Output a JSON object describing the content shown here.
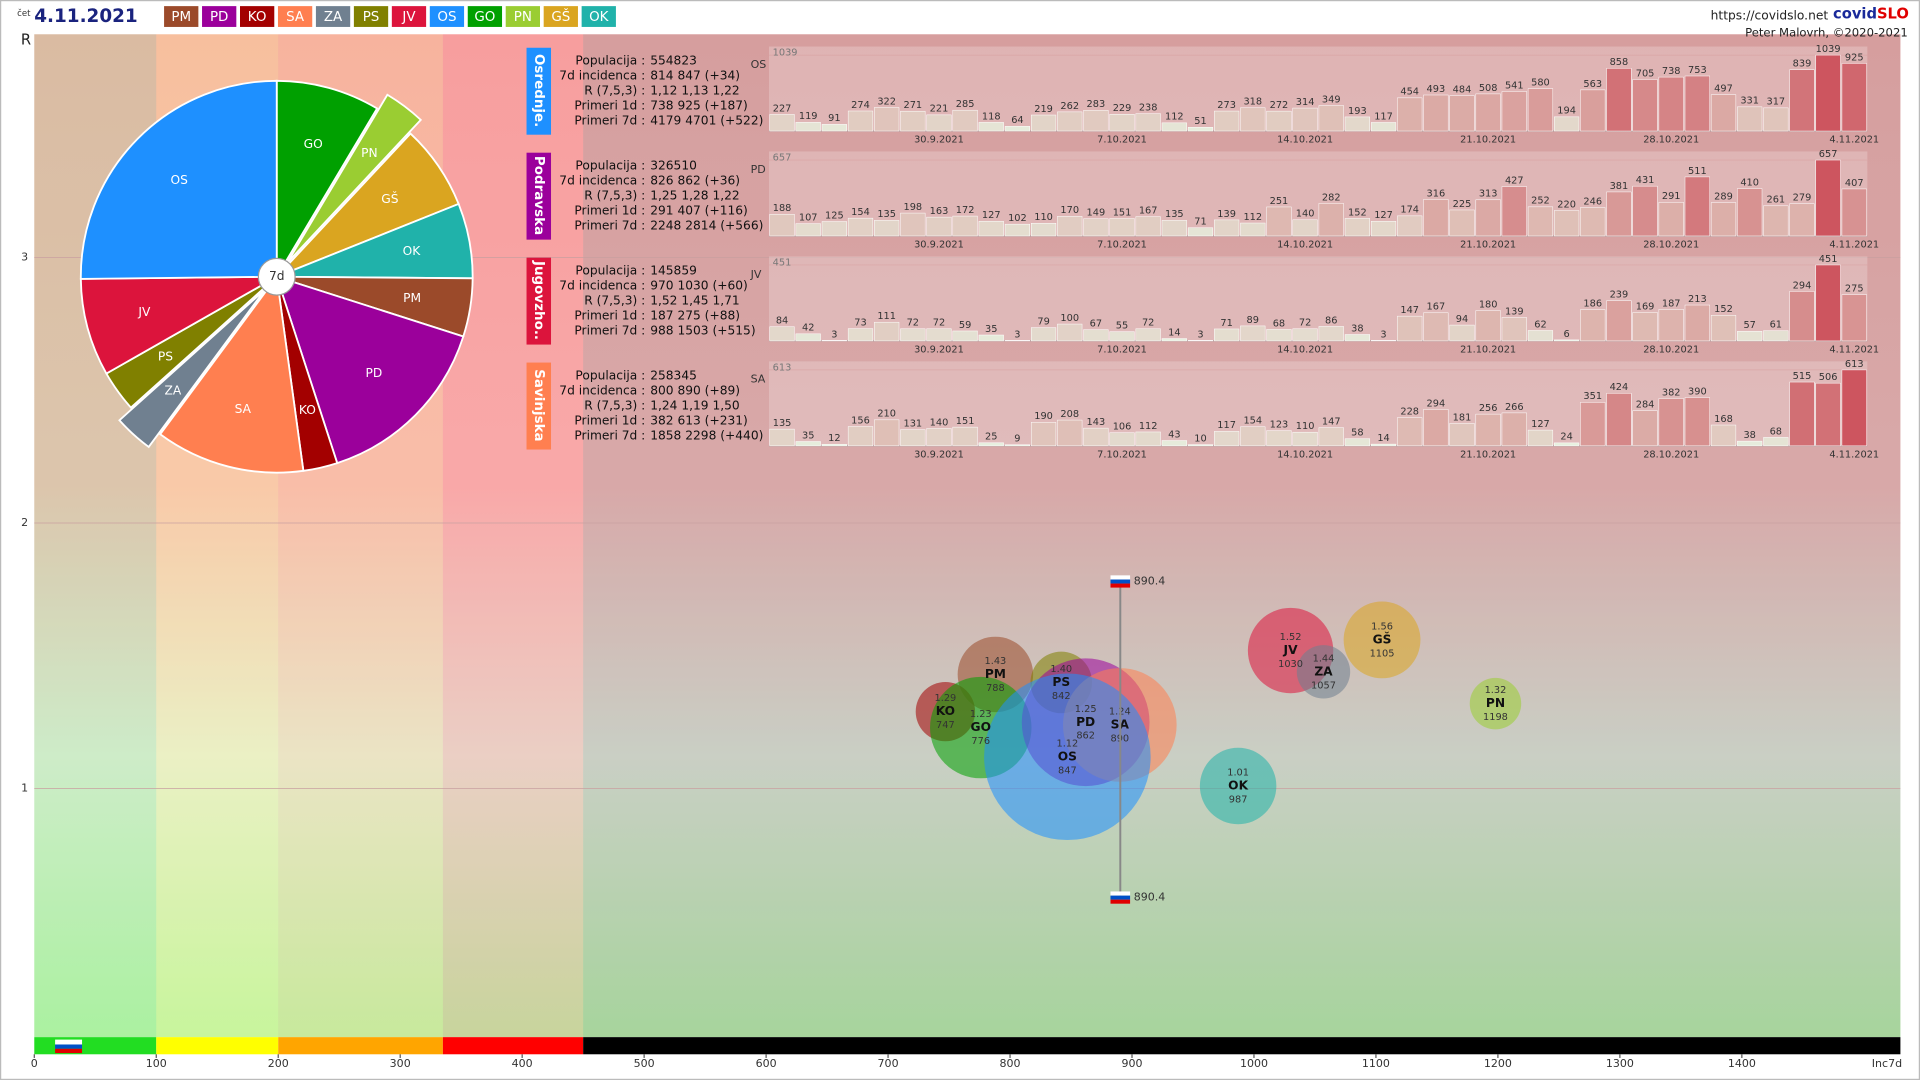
{
  "header": {
    "weekday": "čet",
    "date": "4.11.2021",
    "regions": [
      {
        "name": "PM",
        "color": "#9b4a2a"
      },
      {
        "name": "PD",
        "color": "#9b009b"
      },
      {
        "name": "KO",
        "color": "#a30000"
      },
      {
        "name": "SA",
        "color": "#ff7f50"
      },
      {
        "name": "ZA",
        "color": "#708090"
      },
      {
        "name": "PS",
        "color": "#808000"
      },
      {
        "name": "JV",
        "color": "#dc143c"
      },
      {
        "name": "OS",
        "color": "#1e90ff"
      },
      {
        "name": "GO",
        "color": "#00a000"
      },
      {
        "name": "PN",
        "color": "#9acd32"
      },
      {
        "name": "GŠ",
        "color": "#daa520"
      },
      {
        "name": "OK",
        "color": "#20b2aa"
      }
    ],
    "url": "https://covidslo.net",
    "brand": [
      "covid",
      "SLO"
    ],
    "author": "Peter Malovrh, ©2020-2021"
  },
  "panels": [
    {
      "title": "Osrednje.",
      "region": "OS",
      "rows": [
        {
          "label": "Populacija :",
          "value": "554823"
        },
        {
          "label": "7d incidenca :",
          "value": "814 847 (+34)"
        },
        {
          "label": "R (7,5,3) :",
          "value": "1,12 1,13 1,22"
        },
        {
          "label": "Primeri 1d :",
          "value": "738 925 (+187)"
        },
        {
          "label": "Primeri 7d :",
          "value": "4179 4701 (+522)"
        }
      ]
    },
    {
      "title": "Podravska",
      "region": "PD",
      "rows": [
        {
          "label": "Populacija :",
          "value": "326510"
        },
        {
          "label": "7d incidenca :",
          "value": "826 862 (+36)"
        },
        {
          "label": "R (7,5,3) :",
          "value": "1,25 1,28 1,22"
        },
        {
          "label": "Primeri 1d :",
          "value": "291 407 (+116)"
        },
        {
          "label": "Primeri 7d :",
          "value": "2248 2814 (+566)"
        }
      ]
    },
    {
      "title": "Jugovzho..",
      "region": "JV",
      "rows": [
        {
          "label": "Populacija :",
          "value": "145859"
        },
        {
          "label": "7d incidenca :",
          "value": "970 1030 (+60)"
        },
        {
          "label": "R (7,5,3) :",
          "value": "1,52 1,45 1,71"
        },
        {
          "label": "Primeri 1d :",
          "value": "187 275 (+88)"
        },
        {
          "label": "Primeri 7d :",
          "value": "988 1503 (+515)"
        }
      ]
    },
    {
      "title": "Savinjska",
      "region": "SA",
      "rows": [
        {
          "label": "Populacija :",
          "value": "258345"
        },
        {
          "label": "7d incidenca :",
          "value": "800 890 (+89)"
        },
        {
          "label": "R (7,5,3) :",
          "value": "1,24 1,19 1,50"
        },
        {
          "label": "Primeri 1d :",
          "value": "382 613 (+231)"
        },
        {
          "label": "Primeri 7d :",
          "value": "1858 2298 (+440)"
        }
      ]
    }
  ],
  "chart_data": [
    {
      "type": "bubble",
      "y_label": "R",
      "x_label": "Inc7d",
      "categories": [
        "KO",
        "PM",
        "GO",
        "PS",
        "PD",
        "SA",
        "OS",
        "OK",
        "JV",
        "ZA",
        "GŠ",
        "PN"
      ],
      "x": [
        747,
        788,
        776,
        842,
        862,
        890,
        847,
        987,
        1030,
        1057,
        1105,
        1198
      ],
      "values": [
        1.29,
        1.43,
        1.23,
        1.4,
        1.25,
        1.24,
        1.12,
        1.01,
        1.52,
        1.44,
        1.56,
        1.32
      ],
      "value_labels": [
        "1.29",
        "1.43",
        "1.23",
        "1.40",
        "1.25",
        "1.24",
        "1.12",
        "1.01",
        "1.52",
        "1.44",
        "1.56",
        "1.32"
      ],
      "sizes": [
        70500,
        114000,
        206000,
        75800,
        326510,
        258345,
        554823,
        117000,
        145859,
        57000,
        118000,
        53000
      ],
      "xlim": [
        0,
        1530
      ],
      "ylim": [
        0,
        3.84
      ],
      "xticks": [
        0,
        100,
        200,
        300,
        400,
        500,
        600,
        700,
        800,
        900,
        1000,
        1100,
        1200,
        1300,
        1400
      ],
      "yticks": [
        1,
        2,
        3
      ],
      "grid": true,
      "zones": [
        {
          "from": 0,
          "color": "#22dd22"
        },
        {
          "from": 100,
          "color": "#ffff00"
        },
        {
          "from": 200,
          "color": "#ffa500"
        },
        {
          "from": 335,
          "color": "#ff0000"
        },
        {
          "from": 450,
          "color": "#000000"
        }
      ],
      "marker": {
        "x": 890.4,
        "r": [
          0.59,
          1.78
        ]
      }
    },
    {
      "type": "pie",
      "center_label": "7d",
      "categories": [
        "GO",
        "PN",
        "GŠ",
        "OK",
        "PM",
        "PD",
        "KO",
        "SA",
        "ZA",
        "PS",
        "JV",
        "OS"
      ],
      "values": [
        1598,
        635,
        1304,
        1155,
        898,
        2814,
        527,
        2298,
        602,
        638,
        1503,
        4701
      ],
      "exploded": [
        false,
        true,
        false,
        false,
        false,
        false,
        false,
        false,
        true,
        false,
        false,
        false
      ]
    },
    {
      "type": "bar",
      "label": "OS",
      "ylim": [
        0,
        1039
      ],
      "yticks": [
        1039
      ],
      "categories": [
        null,
        null,
        null,
        null,
        null,
        null,
        "30.9.2021",
        null,
        null,
        null,
        null,
        null,
        null,
        "7.10.2021",
        null,
        null,
        null,
        null,
        null,
        null,
        "14.10.2021",
        null,
        null,
        null,
        null,
        null,
        null,
        "21.10.2021",
        null,
        null,
        null,
        null,
        null,
        null,
        "28.10.2021",
        null,
        null,
        null,
        null,
        null,
        null,
        "4.11.2021"
      ],
      "values": [
        227,
        119,
        91,
        274,
        322,
        271,
        221,
        285,
        118,
        64,
        219,
        262,
        283,
        229,
        238,
        112,
        51,
        273,
        318,
        272,
        314,
        349,
        193,
        117,
        454,
        493,
        484,
        508,
        541,
        580,
        194,
        563,
        858,
        705,
        738,
        753,
        497,
        331,
        317,
        839,
        1039,
        925
      ]
    },
    {
      "type": "bar",
      "label": "PD",
      "ylim": [
        0,
        657
      ],
      "yticks": [
        657
      ],
      "categories": [
        null,
        null,
        null,
        null,
        null,
        null,
        "30.9.2021",
        null,
        null,
        null,
        null,
        null,
        null,
        "7.10.2021",
        null,
        null,
        null,
        null,
        null,
        null,
        "14.10.2021",
        null,
        null,
        null,
        null,
        null,
        null,
        "21.10.2021",
        null,
        null,
        null,
        null,
        null,
        null,
        "28.10.2021",
        null,
        null,
        null,
        null,
        null,
        null,
        "4.11.2021"
      ],
      "values": [
        188,
        107,
        125,
        154,
        135,
        198,
        163,
        172,
        127,
        102,
        110,
        170,
        149,
        151,
        167,
        135,
        71,
        139,
        112,
        251,
        140,
        282,
        152,
        127,
        174,
        316,
        225,
        313,
        427,
        252,
        220,
        246,
        381,
        431,
        291,
        511,
        289,
        410,
        261,
        279,
        657,
        407
      ]
    },
    {
      "type": "bar",
      "label": "JV",
      "ylim": [
        0,
        451
      ],
      "yticks": [
        451
      ],
      "categories": [
        null,
        null,
        null,
        null,
        null,
        null,
        "30.9.2021",
        null,
        null,
        null,
        null,
        null,
        null,
        "7.10.2021",
        null,
        null,
        null,
        null,
        null,
        null,
        "14.10.2021",
        null,
        null,
        null,
        null,
        null,
        null,
        "21.10.2021",
        null,
        null,
        null,
        null,
        null,
        null,
        "28.10.2021",
        null,
        null,
        null,
        null,
        null,
        null,
        "4.11.2021"
      ],
      "values": [
        84,
        42,
        3,
        73,
        111,
        72,
        72,
        59,
        35,
        3,
        79,
        100,
        67,
        55,
        72,
        14,
        3,
        71,
        89,
        68,
        72,
        86,
        38,
        3,
        147,
        167,
        94,
        180,
        139,
        62,
        6,
        186,
        239,
        169,
        187,
        213,
        152,
        57,
        61,
        294,
        451,
        275
      ]
    },
    {
      "type": "bar",
      "label": "SA",
      "ylim": [
        0,
        613
      ],
      "yticks": [
        613
      ],
      "categories": [
        null,
        null,
        null,
        null,
        null,
        null,
        "30.9.2021",
        null,
        null,
        null,
        null,
        null,
        null,
        "7.10.2021",
        null,
        null,
        null,
        null,
        null,
        null,
        "14.10.2021",
        null,
        null,
        null,
        null,
        null,
        null,
        "21.10.2021",
        null,
        null,
        null,
        null,
        null,
        null,
        "28.10.2021",
        null,
        null,
        null,
        null,
        null,
        null,
        "4.11.2021"
      ],
      "values": [
        135,
        35,
        12,
        156,
        210,
        131,
        140,
        151,
        25,
        9,
        190,
        208,
        143,
        106,
        112,
        43,
        10,
        117,
        154,
        123,
        110,
        147,
        58,
        14,
        228,
        294,
        181,
        256,
        266,
        127,
        24,
        351,
        424,
        284,
        382,
        390,
        168,
        38,
        68,
        515,
        506,
        613
      ]
    }
  ]
}
